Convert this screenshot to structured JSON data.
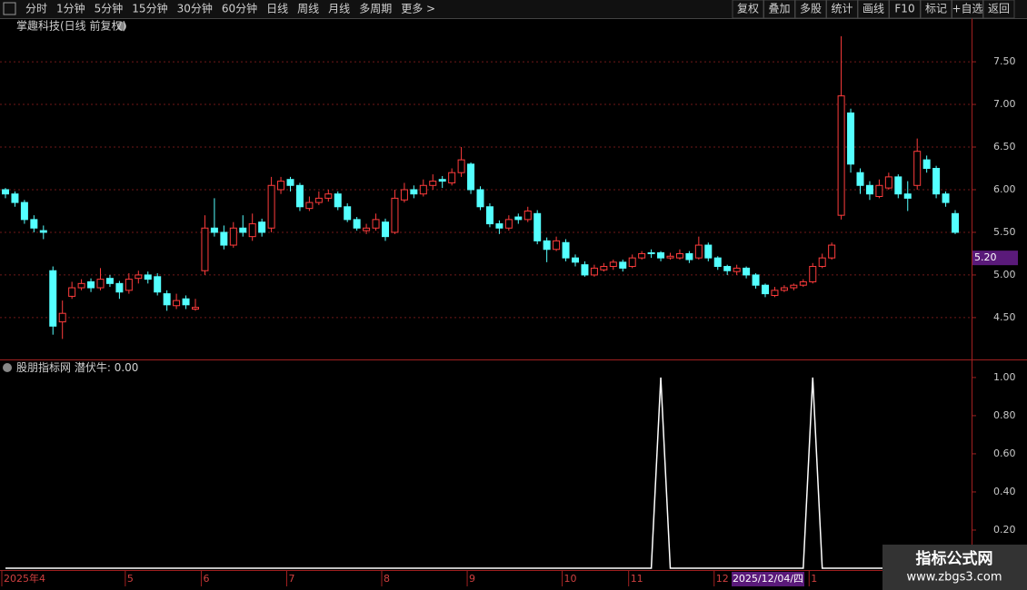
{
  "toolbar": {
    "left": [
      "分时",
      "1分钟",
      "5分钟",
      "15分钟",
      "30分钟",
      "60分钟",
      "日线",
      "周线",
      "月线",
      "多周期",
      "更多 >"
    ],
    "active_index": 6,
    "right": [
      "复权",
      "叠加",
      "多股",
      "统计",
      "画线",
      "F10",
      "标记",
      "+自选",
      "返回"
    ]
  },
  "chart_data": [
    {
      "type": "candlestick",
      "title": "掌趣科技(日线 前复权)",
      "categories": [
        "2025年4",
        null,
        null,
        null,
        null,
        null,
        null,
        null,
        null,
        null,
        null,
        null,
        null,
        "5",
        null,
        null,
        null,
        null,
        null,
        null,
        null,
        "6",
        null,
        null,
        null,
        null,
        null,
        null,
        null,
        null,
        "7",
        null,
        null,
        null,
        null,
        null,
        null,
        null,
        null,
        null,
        "8",
        null,
        null,
        null,
        null,
        null,
        null,
        null,
        null,
        "9",
        null,
        null,
        null,
        null,
        null,
        null,
        null,
        null,
        null,
        "10",
        null,
        null,
        null,
        null,
        null,
        null,
        "11",
        null,
        null,
        null,
        null,
        null,
        null,
        null,
        null,
        "12",
        null,
        null,
        null,
        null,
        null,
        null,
        null,
        null,
        null,
        "1",
        null,
        null,
        null,
        null,
        null,
        null,
        null,
        null,
        null,
        null,
        null,
        null,
        null,
        null,
        null
      ],
      "candles": [
        [
          6.0,
          6.02,
          5.9,
          5.95
        ],
        [
          5.95,
          5.98,
          5.8,
          5.85
        ],
        [
          5.85,
          5.88,
          5.6,
          5.65
        ],
        [
          5.65,
          5.7,
          5.5,
          5.55
        ],
        [
          5.52,
          5.58,
          5.42,
          5.5
        ],
        [
          5.05,
          5.1,
          4.3,
          4.4
        ],
        [
          4.45,
          4.7,
          4.25,
          4.55
        ],
        [
          4.75,
          4.92,
          4.72,
          4.85
        ],
        [
          4.85,
          4.95,
          4.82,
          4.9
        ],
        [
          4.92,
          4.96,
          4.8,
          4.85
        ],
        [
          4.85,
          5.08,
          4.82,
          4.95
        ],
        [
          4.96,
          5.0,
          4.86,
          4.9
        ],
        [
          4.9,
          4.93,
          4.72,
          4.8
        ],
        [
          4.82,
          5.02,
          4.78,
          4.95
        ],
        [
          4.96,
          5.05,
          4.9,
          5.0
        ],
        [
          5.0,
          5.04,
          4.9,
          4.95
        ],
        [
          4.98,
          5.02,
          4.76,
          4.8
        ],
        [
          4.78,
          4.82,
          4.58,
          4.65
        ],
        [
          4.64,
          4.78,
          4.6,
          4.7
        ],
        [
          4.72,
          4.76,
          4.6,
          4.65
        ],
        [
          4.6,
          4.72,
          4.58,
          4.62
        ],
        [
          5.05,
          5.7,
          5.0,
          5.55
        ],
        [
          5.55,
          5.9,
          5.45,
          5.5
        ],
        [
          5.5,
          5.58,
          5.3,
          5.35
        ],
        [
          5.35,
          5.62,
          5.32,
          5.55
        ],
        [
          5.55,
          5.7,
          5.45,
          5.5
        ],
        [
          5.45,
          5.72,
          5.4,
          5.6
        ],
        [
          5.62,
          5.66,
          5.45,
          5.5
        ],
        [
          5.55,
          6.15,
          5.5,
          6.05
        ],
        [
          6.0,
          6.15,
          5.95,
          6.1
        ],
        [
          6.12,
          6.15,
          5.98,
          6.05
        ],
        [
          6.05,
          6.08,
          5.75,
          5.8
        ],
        [
          5.78,
          5.92,
          5.75,
          5.85
        ],
        [
          5.85,
          5.98,
          5.82,
          5.9
        ],
        [
          5.9,
          6.0,
          5.86,
          5.95
        ],
        [
          5.95,
          5.98,
          5.76,
          5.8
        ],
        [
          5.8,
          5.84,
          5.62,
          5.65
        ],
        [
          5.65,
          5.68,
          5.52,
          5.55
        ],
        [
          5.52,
          5.6,
          5.48,
          5.55
        ],
        [
          5.55,
          5.72,
          5.52,
          5.65
        ],
        [
          5.62,
          5.66,
          5.4,
          5.45
        ],
        [
          5.5,
          6.0,
          5.48,
          5.9
        ],
        [
          5.88,
          6.08,
          5.85,
          6.0
        ],
        [
          6.0,
          6.05,
          5.9,
          5.95
        ],
        [
          5.95,
          6.12,
          5.92,
          6.05
        ],
        [
          6.05,
          6.18,
          6.0,
          6.1
        ],
        [
          6.12,
          6.16,
          6.02,
          6.1
        ],
        [
          6.08,
          6.25,
          6.05,
          6.2
        ],
        [
          6.2,
          6.5,
          6.15,
          6.35
        ],
        [
          6.3,
          6.32,
          5.95,
          6.0
        ],
        [
          6.0,
          6.04,
          5.76,
          5.8
        ],
        [
          5.8,
          5.84,
          5.56,
          5.6
        ],
        [
          5.6,
          5.64,
          5.48,
          5.55
        ],
        [
          5.55,
          5.7,
          5.52,
          5.65
        ],
        [
          5.68,
          5.72,
          5.6,
          5.65
        ],
        [
          5.65,
          5.8,
          5.62,
          5.75
        ],
        [
          5.72,
          5.76,
          5.36,
          5.4
        ],
        [
          5.4,
          5.44,
          5.15,
          5.3
        ],
        [
          5.3,
          5.45,
          5.28,
          5.4
        ],
        [
          5.38,
          5.42,
          5.16,
          5.2
        ],
        [
          5.2,
          5.24,
          5.1,
          5.15
        ],
        [
          5.12,
          5.16,
          4.98,
          5.0
        ],
        [
          5.0,
          5.12,
          4.98,
          5.08
        ],
        [
          5.06,
          5.14,
          5.04,
          5.1
        ],
        [
          5.1,
          5.18,
          5.06,
          5.15
        ],
        [
          5.15,
          5.18,
          5.04,
          5.08
        ],
        [
          5.1,
          5.24,
          5.08,
          5.2
        ],
        [
          5.2,
          5.28,
          5.18,
          5.25
        ],
        [
          5.26,
          5.3,
          5.2,
          5.25
        ],
        [
          5.26,
          5.28,
          5.16,
          5.2
        ],
        [
          5.2,
          5.26,
          5.18,
          5.22
        ],
        [
          5.2,
          5.3,
          5.18,
          5.25
        ],
        [
          5.25,
          5.28,
          5.14,
          5.18
        ],
        [
          5.2,
          5.45,
          5.18,
          5.35
        ],
        [
          5.35,
          5.38,
          5.16,
          5.2
        ],
        [
          5.2,
          5.22,
          5.06,
          5.1
        ],
        [
          5.1,
          5.12,
          5.0,
          5.05
        ],
        [
          5.04,
          5.12,
          5.0,
          5.08
        ],
        [
          5.08,
          5.1,
          4.96,
          5.0
        ],
        [
          5.0,
          5.02,
          4.84,
          4.88
        ],
        [
          4.88,
          4.9,
          4.74,
          4.78
        ],
        [
          4.76,
          4.86,
          4.74,
          4.82
        ],
        [
          4.82,
          4.88,
          4.8,
          4.85
        ],
        [
          4.85,
          4.9,
          4.82,
          4.88
        ],
        [
          4.88,
          4.95,
          4.86,
          4.92
        ],
        [
          4.92,
          5.14,
          4.9,
          5.1
        ],
        [
          5.1,
          5.25,
          5.08,
          5.2
        ],
        [
          5.2,
          5.38,
          5.18,
          5.35
        ],
        [
          5.7,
          7.8,
          5.65,
          7.1
        ],
        [
          6.9,
          6.95,
          6.2,
          6.3
        ],
        [
          6.2,
          6.25,
          5.95,
          6.05
        ],
        [
          6.05,
          6.1,
          5.88,
          5.95
        ],
        [
          5.92,
          6.12,
          5.9,
          6.05
        ],
        [
          6.02,
          6.2,
          6.0,
          6.15
        ],
        [
          6.15,
          6.18,
          5.9,
          5.95
        ],
        [
          5.95,
          6.1,
          5.75,
          5.9
        ],
        [
          6.05,
          6.6,
          6.0,
          6.45
        ],
        [
          6.35,
          6.4,
          6.2,
          6.25
        ],
        [
          6.25,
          6.28,
          5.9,
          5.95
        ],
        [
          5.95,
          5.98,
          5.8,
          5.85
        ],
        [
          5.72,
          5.76,
          5.48,
          5.5
        ]
      ],
      "up_color": "#ff3c3c",
      "down_color": "#54ffff",
      "grid": true,
      "ylim": [
        4.02,
        7.82
      ],
      "yticks": [
        {
          "value": 4.5,
          "label": "4.50"
        },
        {
          "value": 5,
          "label": "5.00"
        },
        {
          "value": 5.5,
          "label": "5.50"
        },
        {
          "value": 6,
          "label": "6.00"
        },
        {
          "value": 6.5,
          "label": "6.50"
        },
        {
          "value": 7,
          "label": "7.00"
        },
        {
          "value": 7.5,
          "label": "7.50"
        }
      ],
      "cursor_price": {
        "value": 5.2,
        "label": "5.20"
      },
      "cursor_date": "2025/12/04/四"
    },
    {
      "type": "line",
      "title": "股朋指标网",
      "series": [
        {
          "name": "潜伏牛:",
          "color": "#ffffff",
          "values": [
            0,
            0,
            0,
            0,
            0,
            0,
            0,
            0,
            0,
            0,
            0,
            0,
            0,
            0,
            0,
            0,
            0,
            0,
            0,
            0,
            0,
            0,
            0,
            0,
            0,
            0,
            0,
            0,
            0,
            0,
            0,
            0,
            0,
            0,
            0,
            0,
            0,
            0,
            0,
            0,
            0,
            0,
            0,
            0,
            0,
            0,
            0,
            0,
            0,
            0,
            0,
            0,
            0,
            0,
            0,
            0,
            0,
            0,
            0,
            0,
            0,
            0,
            0,
            0,
            0,
            0,
            0,
            0,
            0,
            1,
            0,
            0,
            0,
            0,
            0,
            0,
            0,
            0,
            0,
            0,
            0,
            0,
            0,
            0,
            0,
            1,
            0,
            0,
            0,
            0,
            0,
            0,
            0,
            0,
            0,
            0,
            0,
            0,
            0,
            0,
            0
          ]
        }
      ],
      "current_value": {
        "value": 0,
        "label": "0.00"
      },
      "ylim": [
        0,
        1.09
      ],
      "yticks": [
        {
          "value": 0.2,
          "label": "0.20"
        },
        {
          "value": 0.4,
          "label": "0.40"
        },
        {
          "value": 0.6,
          "label": "0.60"
        },
        {
          "value": 0.8,
          "label": "0.80"
        },
        {
          "value": 1,
          "label": "1.00"
        }
      ]
    }
  ],
  "watermark": {
    "title": "指标公式网",
    "url": "www.zbgs3.com"
  }
}
